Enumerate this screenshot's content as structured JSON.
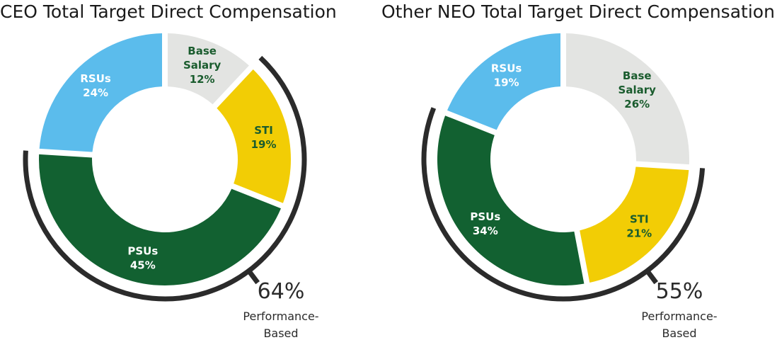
{
  "chart_data": [
    {
      "type": "pie",
      "title": "CEO Total Target Direct Compensation",
      "slices": [
        {
          "name": "Base Salary",
          "label_lines": [
            "Base",
            "Salary"
          ],
          "value": 12,
          "color": "#e3e4e2",
          "text_color": "#1a5c2e"
        },
        {
          "name": "STI",
          "label_lines": [
            "STI"
          ],
          "value": 19,
          "color": "#f2cd05",
          "text_color": "#1a5c2e"
        },
        {
          "name": "PSUs",
          "label_lines": [
            "PSUs"
          ],
          "value": 45,
          "color": "#126131",
          "text_color": "#ffffff"
        },
        {
          "name": "RSUs",
          "label_lines": [
            "RSUs"
          ],
          "value": 24,
          "color": "#5bbcec",
          "text_color": "#ffffff"
        }
      ],
      "performance_based": {
        "value": "64%",
        "label_lines": [
          "Performance-",
          "Based"
        ],
        "slices": [
          "STI",
          "PSUs"
        ]
      }
    },
    {
      "type": "pie",
      "title": "Other NEO Total Target Direct Compensation",
      "slices": [
        {
          "name": "Base Salary",
          "label_lines": [
            "Base",
            "Salary"
          ],
          "value": 26,
          "color": "#e3e4e2",
          "text_color": "#1a5c2e"
        },
        {
          "name": "STI",
          "label_lines": [
            "STI"
          ],
          "value": 21,
          "color": "#f2cd05",
          "text_color": "#1a5c2e"
        },
        {
          "name": "PSUs",
          "label_lines": [
            "PSUs"
          ],
          "value": 34,
          "color": "#126131",
          "text_color": "#ffffff"
        },
        {
          "name": "RSUs",
          "label_lines": [
            "RSUs"
          ],
          "value": 19,
          "color": "#5bbcec",
          "text_color": "#ffffff"
        }
      ],
      "performance_based": {
        "value": "55%",
        "label_lines": [
          "Performance-",
          "Based"
        ],
        "slices": [
          "STI",
          "PSUs"
        ]
      }
    }
  ]
}
